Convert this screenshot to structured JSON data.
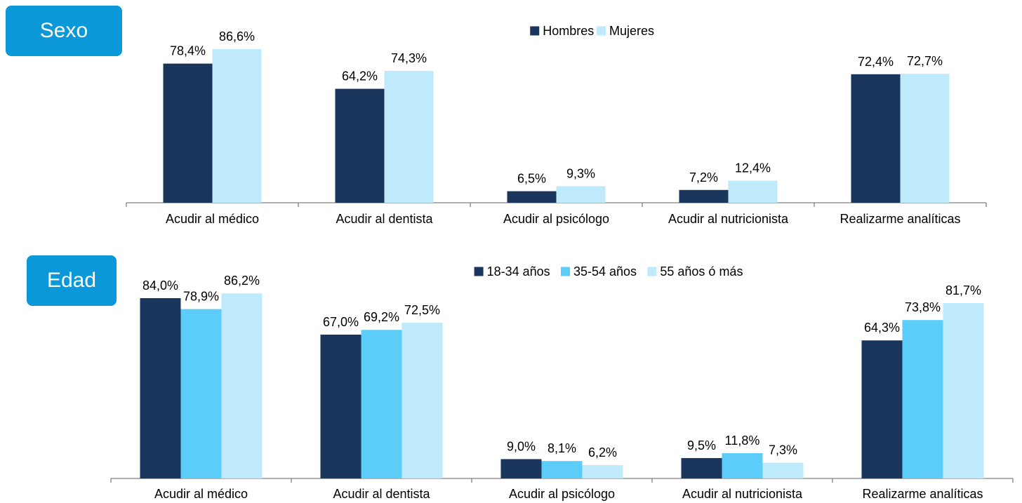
{
  "panels": [
    {
      "badge": "Sexo",
      "legend": [
        "Hombres",
        "Mujeres"
      ]
    },
    {
      "badge": "Edad",
      "legend": [
        "18-34 años",
        "35-54 años",
        "55 años ó más"
      ]
    }
  ],
  "chart_data": [
    {
      "type": "bar",
      "categories": [
        "Acudir al médico",
        "Acudir al dentista",
        "Acudir al psicólogo",
        "Acudir al nutricionista",
        "Realizarme analíticas"
      ],
      "series": [
        {
          "name": "Hombres",
          "color": "#1b365d",
          "values": [
            78.4,
            64.2,
            6.5,
            7.2,
            72.4
          ],
          "labels": [
            "78,4%",
            "64,2%",
            "6,5%",
            "7,2%",
            "72,4%"
          ]
        },
        {
          "name": "Mujeres",
          "color": "#bfeafb",
          "values": [
            86.6,
            74.3,
            9.3,
            12.4,
            72.7
          ],
          "labels": [
            "86,6%",
            "74,3%",
            "9,3%",
            "12,4%",
            "72,7%"
          ]
        }
      ],
      "ylim": [
        0,
        100
      ],
      "grid": false,
      "legend_position": "top-center"
    },
    {
      "type": "bar",
      "categories": [
        "Acudir al médico",
        "Acudir al dentista",
        "Acudir al psicólogo",
        "Acudir al nutricionista",
        "Realizarme analíticas"
      ],
      "series": [
        {
          "name": "18-34 años",
          "color": "#1b365d",
          "values": [
            84.0,
            67.0,
            9.0,
            9.5,
            64.3
          ],
          "labels": [
            "84,0%",
            "67,0%",
            "9,0%",
            "9,5%",
            "64,3%"
          ]
        },
        {
          "name": "35-54 años",
          "color": "#5bcdf8",
          "values": [
            78.9,
            69.2,
            8.1,
            11.8,
            73.8
          ],
          "labels": [
            "78,9%",
            "69,2%",
            "8,1%",
            "11,8%",
            "73,8%"
          ]
        },
        {
          "name": "55 años ó más",
          "color": "#bfeafb",
          "values": [
            86.2,
            72.5,
            6.2,
            7.3,
            81.7
          ],
          "labels": [
            "86,2%",
            "72,5%",
            "6,2%",
            "7,3%",
            "81,7%"
          ]
        }
      ],
      "ylim": [
        0,
        100
      ],
      "grid": false,
      "legend_position": "top-center"
    }
  ]
}
